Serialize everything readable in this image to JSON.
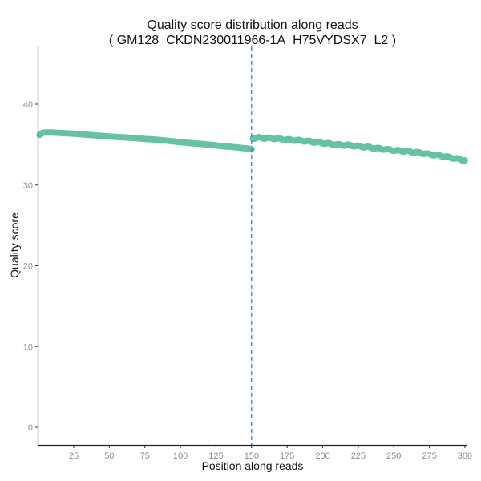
{
  "chart_data": {
    "type": "scatter",
    "title": "Quality score distribution along reads",
    "subtitle": "( GM128_CKDN230011966-1A_H75VYDSX7_L2 )",
    "xlabel": "Position along reads",
    "ylabel": "Quality score",
    "xlim": [
      0,
      300
    ],
    "ylim": [
      -2.2,
      47.5
    ],
    "xticks": [
      25,
      50,
      75,
      100,
      125,
      150,
      175,
      200,
      225,
      250,
      275,
      300
    ],
    "yticks": [
      0,
      10,
      20,
      30,
      40
    ],
    "grid": false,
    "vline": {
      "x": 150,
      "style": "dashed",
      "color": "#3a7fc4"
    },
    "point_color": "#66c2a5",
    "segments": [
      {
        "x": [
          1,
          3,
          5,
          10,
          15,
          20,
          25,
          30,
          40,
          50,
          60,
          70,
          75,
          80,
          90,
          100,
          110,
          120,
          125,
          130,
          140,
          150
        ],
        "y": [
          36.2,
          36.45,
          36.5,
          36.5,
          36.45,
          36.4,
          36.35,
          36.28,
          36.15,
          36.0,
          35.9,
          35.78,
          35.7,
          35.65,
          35.5,
          35.3,
          35.15,
          35.0,
          34.9,
          34.8,
          34.65,
          34.45
        ]
      },
      {
        "x": [
          151,
          155,
          160,
          165,
          170,
          175,
          180,
          185,
          190,
          195,
          200,
          210,
          220,
          225,
          230,
          240,
          250,
          260,
          270,
          275,
          280,
          290,
          300
        ],
        "y": [
          35.8,
          35.85,
          35.8,
          35.78,
          35.7,
          35.6,
          35.55,
          35.5,
          35.4,
          35.3,
          35.2,
          35.0,
          34.9,
          34.8,
          34.7,
          34.5,
          34.3,
          34.15,
          33.95,
          33.8,
          33.7,
          33.4,
          33.05
        ]
      }
    ]
  }
}
